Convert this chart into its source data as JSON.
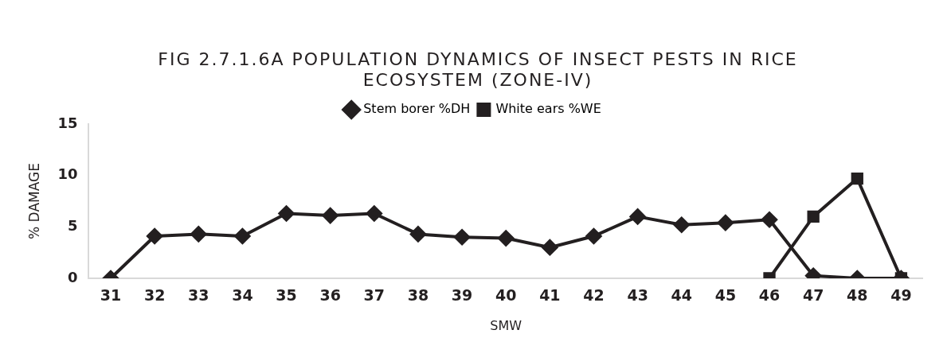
{
  "chart_data": {
    "type": "line",
    "title": "FIG 2.7.1.6A POPULATION DYNAMICS OF INSECT PESTS IN RICE ECOSYSTEM (ZONE-IV)",
    "xlabel": "SMW",
    "ylabel": "% DAMAGE",
    "categories": [
      "31",
      "32",
      "33",
      "34",
      "35",
      "36",
      "37",
      "38",
      "39",
      "40",
      "41",
      "42",
      "43",
      "44",
      "45",
      "46",
      "47",
      "48",
      "49"
    ],
    "series": [
      {
        "name": "Stem borer %DH",
        "color": "#231f20",
        "marker": "diamond",
        "values": [
          0,
          4.1,
          4.3,
          4.1,
          6.3,
          6.1,
          6.3,
          4.3,
          4.0,
          3.9,
          3.0,
          4.1,
          6.0,
          5.2,
          5.4,
          5.7,
          0.25,
          0,
          0
        ]
      },
      {
        "name": "White ears %WE",
        "color": "#231f20",
        "marker": "square",
        "values": [
          null,
          null,
          null,
          null,
          null,
          null,
          null,
          null,
          null,
          null,
          null,
          null,
          null,
          null,
          null,
          0,
          6.0,
          9.7,
          0
        ]
      }
    ],
    "ylim": [
      0,
      15
    ],
    "yticks": [
      0,
      5,
      10,
      15
    ],
    "grid": false,
    "legend": "top"
  }
}
